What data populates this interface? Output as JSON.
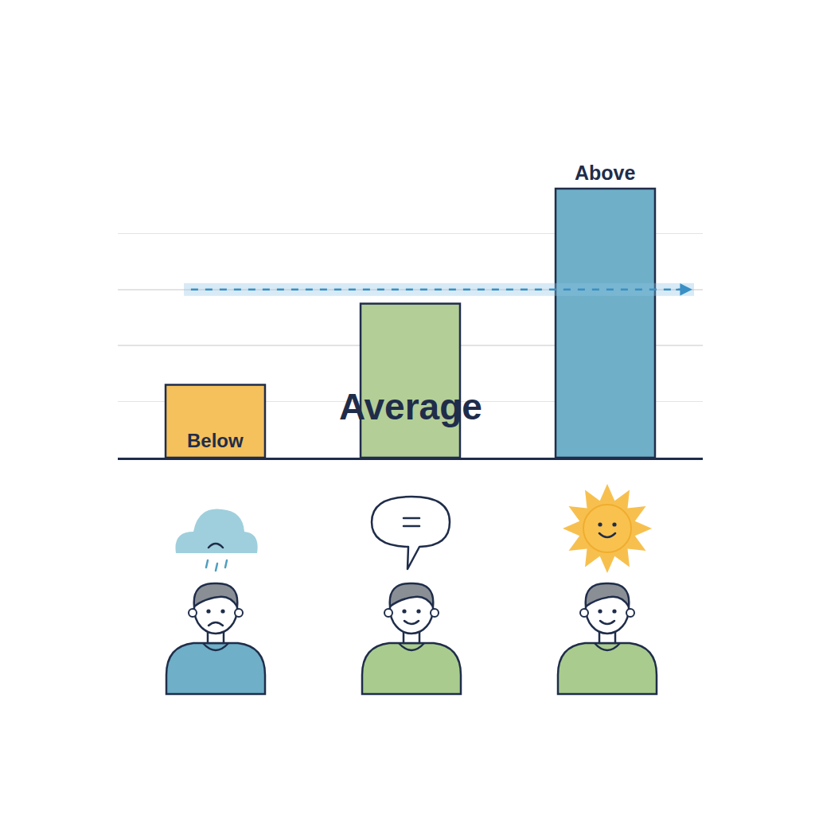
{
  "chart_data": {
    "type": "bar",
    "categories": [
      "Below",
      "Average",
      "Above"
    ],
    "values": [
      1.3,
      2.75,
      4.8
    ],
    "colors": [
      "#f5c15c",
      "#b3cf97",
      "#6fafc8"
    ],
    "ylim": [
      0,
      5
    ],
    "yticks": [
      0,
      1,
      2,
      3,
      4,
      5
    ],
    "grid": true,
    "tick_labels": false,
    "reference_line": 3
  }
}
